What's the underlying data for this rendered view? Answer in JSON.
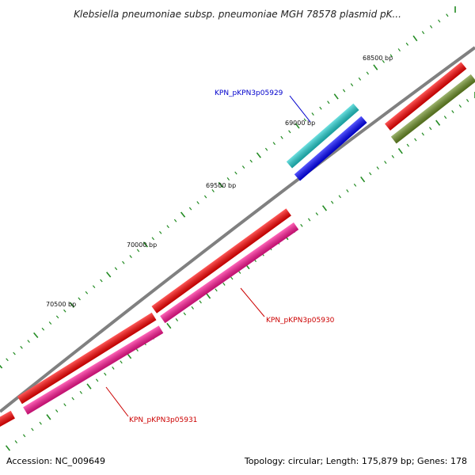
{
  "title": "Klebsiella pneumoniae subsp. pneumoniae MGH 78578 plasmid pK...",
  "footer": {
    "accession": "Accession: NC_009649",
    "summary": "Topology: circular; Length: 175,879 bp; Genes: 178"
  },
  "ruler": {
    "labels": [
      "68500 bp",
      "69000 bp",
      "69500 bp",
      "70000 bp",
      "70500 bp"
    ]
  },
  "genes": [
    {
      "name": "red-gene-a",
      "color": "#ff0000",
      "ring": 1
    },
    {
      "name": "red-gene-b",
      "color": "#ff0000",
      "ring": 1
    },
    {
      "name": "red-gene-c",
      "color": "#ff0000",
      "ring": 1
    },
    {
      "name": "red-gene-d",
      "color": "#ff0000",
      "ring": 1
    },
    {
      "name": "olive-gene",
      "color": "#6b8e23",
      "ring": 2
    },
    {
      "name": "cyan-gene",
      "color": "#20d0d0",
      "ring": -2
    },
    {
      "name": "blue-gene",
      "color": "#0000ff",
      "ring": -1
    },
    {
      "name": "pink-gene-a",
      "color": "#ff1493",
      "ring": 2
    },
    {
      "name": "pink-gene-b",
      "color": "#ff1493",
      "ring": 2
    }
  ],
  "labels": [
    {
      "text": "KPN_pKPN3p05929",
      "color": "#0000cc"
    },
    {
      "text": "KPN_pKPN3p05930",
      "color": "#cc0000"
    },
    {
      "text": "KPN_pKPN3p05931",
      "color": "#cc0000"
    }
  ]
}
